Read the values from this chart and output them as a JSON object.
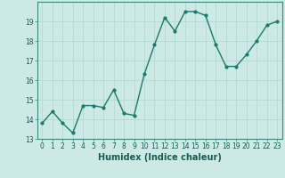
{
  "x": [
    0,
    1,
    2,
    3,
    4,
    5,
    6,
    7,
    8,
    9,
    10,
    11,
    12,
    13,
    14,
    15,
    16,
    17,
    18,
    19,
    20,
    21,
    22,
    23
  ],
  "y": [
    13.8,
    14.4,
    13.8,
    13.3,
    14.7,
    14.7,
    14.6,
    15.5,
    14.3,
    14.2,
    16.3,
    17.8,
    19.2,
    18.5,
    19.5,
    19.5,
    19.3,
    17.8,
    16.7,
    16.7,
    17.3,
    18.0,
    18.8,
    19.0
  ],
  "line_color": "#1a7a6e",
  "marker": "o",
  "marker_size": 2.0,
  "line_width": 1.0,
  "bg_color": "#cce9e5",
  "grid_color": "#b0d5d0",
  "xlabel": "Humidex (Indice chaleur)",
  "ylim": [
    13,
    20
  ],
  "xlim": [
    -0.5,
    23.5
  ],
  "yticks": [
    13,
    14,
    15,
    16,
    17,
    18,
    19
  ],
  "xtick_labels": [
    "0",
    "1",
    "2",
    "3",
    "4",
    "5",
    "6",
    "7",
    "8",
    "9",
    "10",
    "11",
    "12",
    "13",
    "14",
    "15",
    "16",
    "17",
    "18",
    "19",
    "20",
    "21",
    "22",
    "23"
  ],
  "xlabel_fontsize": 7.0,
  "tick_fontsize": 5.5,
  "spine_color": "#3a8a80",
  "tick_color": "#1a6a60",
  "label_color": "#1a5a54"
}
